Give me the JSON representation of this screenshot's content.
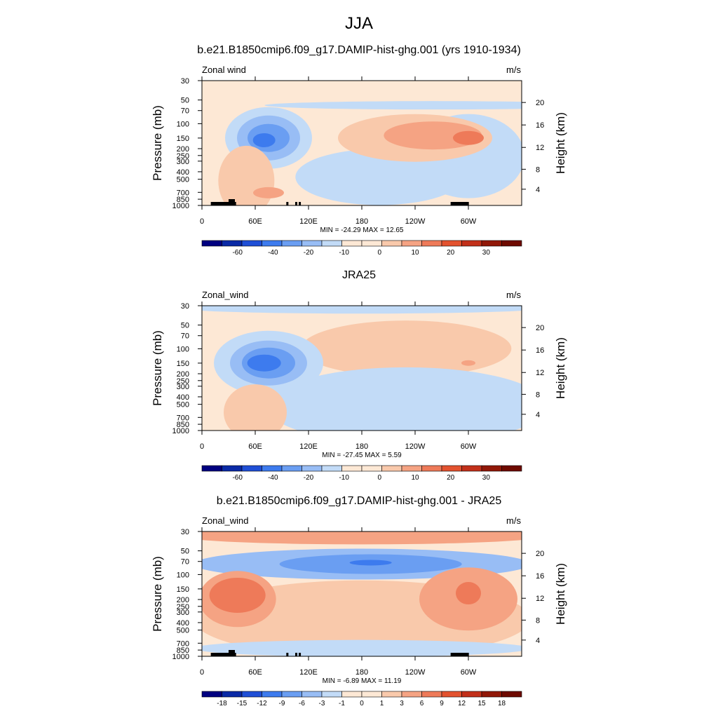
{
  "figure": {
    "title": "JJA"
  },
  "chart_data": [
    {
      "type": "heatmap",
      "title": "b.e21.B1850cmip6.f09_g17.DAMIP-hist-ghg.001 (yrs 1910-1934)",
      "variable_label": "Zonal wind",
      "units": "m/s",
      "ylabel": "Pressure (mb)",
      "ylabel_right": "Height (km)",
      "x_ticks": [
        "0",
        "60E",
        "120E",
        "180",
        "120W",
        "60W"
      ],
      "y_ticks": [
        "30",
        "50",
        "70",
        "100",
        "150",
        "200",
        "250",
        "300",
        "400",
        "500",
        "700",
        "850",
        "1000"
      ],
      "y_ticks_right": [
        "20",
        "16",
        "12",
        "8",
        "4"
      ],
      "stats": "MIN = -24.29  MAX =  12.65",
      "min": -24.29,
      "max": 12.65,
      "colorbar_labels": [
        "-60",
        "-40",
        "-20",
        "-10",
        "0",
        "10",
        "20",
        "30"
      ],
      "features": [
        {
          "kind": "jet_core",
          "sign": "negative",
          "lon": 75,
          "p": 150,
          "value": -20
        },
        {
          "kind": "jet",
          "sign": "positive",
          "lon": 240,
          "p": 150,
          "value": 10
        },
        {
          "kind": "jet",
          "sign": "positive",
          "lon": 290,
          "p": 150,
          "value": 12
        }
      ]
    },
    {
      "type": "heatmap",
      "title": "JRA25",
      "variable_label": "Zonal_wind",
      "units": "m/s",
      "ylabel": "Pressure (mb)",
      "ylabel_right": "Height (km)",
      "x_ticks": [
        "0",
        "60E",
        "120E",
        "180",
        "120W",
        "60W"
      ],
      "y_ticks": [
        "30",
        "50",
        "70",
        "100",
        "150",
        "200",
        "250",
        "300",
        "400",
        "500",
        "700",
        "850",
        "1000"
      ],
      "y_ticks_right": [
        "20",
        "16",
        "12",
        "8",
        "4"
      ],
      "stats": "MIN = -27.45  MAX =   5.59",
      "min": -27.45,
      "max": 5.59,
      "colorbar_labels": [
        "-60",
        "-40",
        "-20",
        "-10",
        "0",
        "10",
        "20",
        "30"
      ],
      "features": [
        {
          "kind": "jet_core",
          "sign": "negative",
          "lon": 75,
          "p": 150,
          "value": -25
        },
        {
          "kind": "jet",
          "sign": "positive",
          "lon": 230,
          "p": 100,
          "value": 5
        }
      ]
    },
    {
      "type": "heatmap",
      "title": "b.e21.B1850cmip6.f09_g17.DAMIP-hist-ghg.001 - JRA25",
      "variable_label": "Zonal_wind",
      "units": "m/s",
      "ylabel": "Pressure (mb)",
      "ylabel_right": "Height (km)",
      "x_ticks": [
        "0",
        "60E",
        "120E",
        "180",
        "120W",
        "60W"
      ],
      "y_ticks": [
        "30",
        "50",
        "70",
        "100",
        "150",
        "200",
        "250",
        "300",
        "400",
        "500",
        "700",
        "850",
        "1000"
      ],
      "y_ticks_right": [
        "20",
        "16",
        "12",
        "8",
        "4"
      ],
      "stats": "MIN =  -6.89  MAX =  11.19",
      "min": -6.89,
      "max": 11.19,
      "colorbar_labels": [
        "-18",
        "-15",
        "-12",
        "-9",
        "-6",
        "-3",
        "-1",
        "0",
        "1",
        "3",
        "6",
        "9",
        "12",
        "15",
        "18"
      ],
      "features": [
        {
          "kind": "band",
          "sign": "positive",
          "p": 30,
          "value": 6
        },
        {
          "kind": "band",
          "sign": "negative",
          "p": 70,
          "value": -5
        },
        {
          "kind": "core",
          "sign": "positive",
          "lon": 40,
          "p": 180,
          "value": 11
        },
        {
          "kind": "core",
          "sign": "positive",
          "lon": 300,
          "p": 160,
          "value": 9
        }
      ]
    }
  ]
}
